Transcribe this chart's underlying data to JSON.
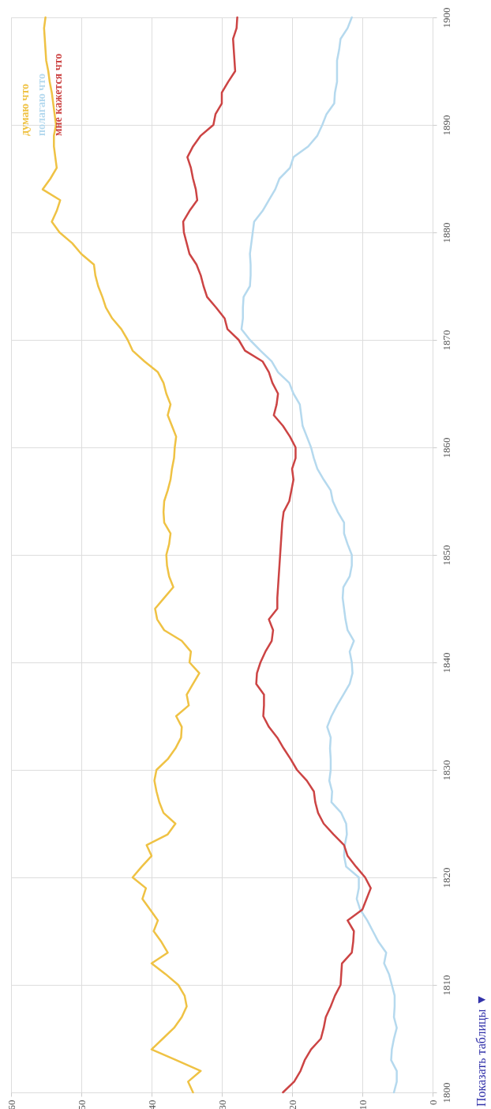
{
  "chart_data": {
    "type": "line",
    "x": [
      1800,
      1801,
      1802,
      1803,
      1804,
      1805,
      1806,
      1807,
      1808,
      1809,
      1810,
      1811,
      1812,
      1813,
      1814,
      1815,
      1816,
      1817,
      1818,
      1819,
      1820,
      1821,
      1822,
      1823,
      1824,
      1825,
      1826,
      1827,
      1828,
      1829,
      1830,
      1831,
      1832,
      1833,
      1834,
      1835,
      1836,
      1837,
      1838,
      1839,
      1840,
      1841,
      1842,
      1843,
      1844,
      1845,
      1846,
      1847,
      1848,
      1849,
      1850,
      1851,
      1852,
      1853,
      1854,
      1855,
      1856,
      1857,
      1858,
      1859,
      1860,
      1861,
      1862,
      1863,
      1864,
      1865,
      1866,
      1867,
      1868,
      1869,
      1870,
      1871,
      1872,
      1873,
      1874,
      1875,
      1876,
      1877,
      1878,
      1879,
      1880,
      1881,
      1882,
      1883,
      1884,
      1885,
      1886,
      1887,
      1888,
      1889,
      1890,
      1891,
      1892,
      1893,
      1894,
      1895,
      1896,
      1897,
      1898,
      1899,
      1900
    ],
    "series": [
      {
        "name": "думаю что",
        "color": "#efc244",
        "values": [
          34.1,
          34.8,
          33.0,
          36.5,
          40.0,
          38.4,
          36.8,
          35.7,
          35.0,
          35.3,
          36.2,
          38.0,
          40.0,
          37.7,
          38.6,
          39.7,
          39.1,
          40.2,
          41.3,
          40.8,
          42.7,
          41.4,
          40.0,
          40.7,
          37.7,
          36.6,
          38.3,
          38.9,
          39.3,
          39.6,
          39.3,
          37.7,
          36.6,
          35.8,
          35.7,
          36.5,
          34.7,
          35.0,
          34.1,
          33.2,
          34.6,
          34.4,
          35.7,
          38.2,
          39.2,
          39.5,
          38.2,
          36.9,
          37.5,
          37.8,
          37.9,
          37.5,
          37.3,
          38.2,
          38.3,
          38.2,
          37.7,
          37.3,
          37.1,
          36.8,
          36.7,
          36.5,
          37.1,
          37.7,
          37.3,
          37.9,
          38.3,
          39.1,
          41.0,
          42.7,
          43.4,
          44.3,
          45.6,
          46.5,
          47.0,
          47.6,
          48.0,
          48.2,
          50.0,
          51.3,
          53.1,
          54.2,
          53.5,
          53.0,
          55.5,
          54.4,
          53.5,
          53.7,
          53.9,
          53.9,
          53.6,
          53.8,
          54.0,
          54.2,
          54.5,
          54.7,
          55.0,
          55.1,
          55.2,
          55.3,
          55.1
        ]
      },
      {
        "name": "полагаю что",
        "color": "#b5d9ee",
        "values": [
          5.5,
          5.1,
          5.1,
          5.9,
          5.8,
          5.5,
          5.1,
          5.5,
          5.4,
          5.4,
          5.8,
          6.2,
          6.9,
          6.6,
          7.7,
          8.5,
          9.3,
          10.3,
          10.8,
          10.5,
          10.5,
          12.3,
          12.6,
          12.5,
          12.2,
          12.3,
          13.0,
          14.4,
          14.3,
          14.7,
          14.5,
          14.5,
          14.6,
          14.5,
          15.0,
          14.4,
          13.6,
          12.7,
          11.8,
          11.4,
          11.5,
          11.8,
          11.2,
          12.1,
          12.4,
          12.6,
          12.8,
          12.7,
          11.8,
          11.5,
          11.5,
          12.1,
          12.6,
          12.6,
          13.5,
          14.2,
          14.5,
          15.5,
          16.4,
          16.9,
          17.3,
          17.9,
          18.5,
          18.7,
          18.9,
          19.8,
          20.4,
          22.0,
          22.9,
          24.5,
          26.0,
          27.2,
          27.0,
          27.0,
          26.9,
          26.0,
          25.9,
          25.9,
          26.0,
          25.8,
          25.6,
          25.4,
          24.2,
          23.3,
          22.4,
          21.8,
          20.3,
          19.8,
          17.7,
          16.4,
          15.7,
          15.1,
          14.0,
          13.9,
          13.6,
          13.6,
          13.6,
          13.3,
          13.1,
          12.1,
          11.5
        ]
      },
      {
        "name": "мне кажется что",
        "color": "#cc4444",
        "values": [
          21.3,
          19.7,
          18.8,
          18.2,
          17.3,
          15.9,
          15.5,
          15.2,
          14.5,
          13.9,
          13.1,
          13.0,
          12.9,
          11.5,
          11.3,
          11.2,
          12.1,
          10.0,
          9.4,
          8.8,
          9.6,
          10.9,
          12.1,
          12.6,
          14.1,
          15.5,
          16.3,
          16.7,
          16.9,
          17.9,
          19.3,
          20.2,
          21.2,
          22.1,
          23.3,
          24.1,
          24.0,
          24.0,
          25.1,
          25.0,
          24.5,
          23.8,
          22.9,
          22.7,
          23.3,
          22.1,
          22.1,
          22.0,
          21.9,
          21.8,
          21.7,
          21.6,
          21.5,
          21.4,
          21.2,
          20.4,
          20.1,
          19.8,
          20.0,
          19.5,
          19.5,
          20.3,
          21.3,
          22.6,
          22.2,
          22.0,
          22.8,
          23.3,
          24.2,
          26.7,
          27.6,
          29.2,
          29.6,
          30.8,
          32.1,
          32.6,
          33.0,
          33.6,
          34.6,
          35.0,
          35.4,
          35.5,
          34.6,
          33.5,
          33.7,
          34.1,
          34.4,
          34.9,
          34.1,
          33.0,
          31.2,
          30.9,
          30.0,
          30.0,
          29.1,
          28.1,
          28.2,
          28.3,
          28.4,
          27.9,
          27.8
        ]
      }
    ],
    "orientation": "horizontal",
    "ylim": [
      1800,
      1900
    ],
    "yticks": [
      1800,
      1810,
      1820,
      1830,
      1840,
      1850,
      1860,
      1870,
      1880,
      1890,
      1900
    ],
    "xlim": [
      60,
      0
    ],
    "xticks": [
      60,
      50,
      40,
      30,
      20,
      10,
      0
    ],
    "grid": true,
    "legend": "top left",
    "annotations": [
      "Показать таблицы ▼"
    ]
  }
}
